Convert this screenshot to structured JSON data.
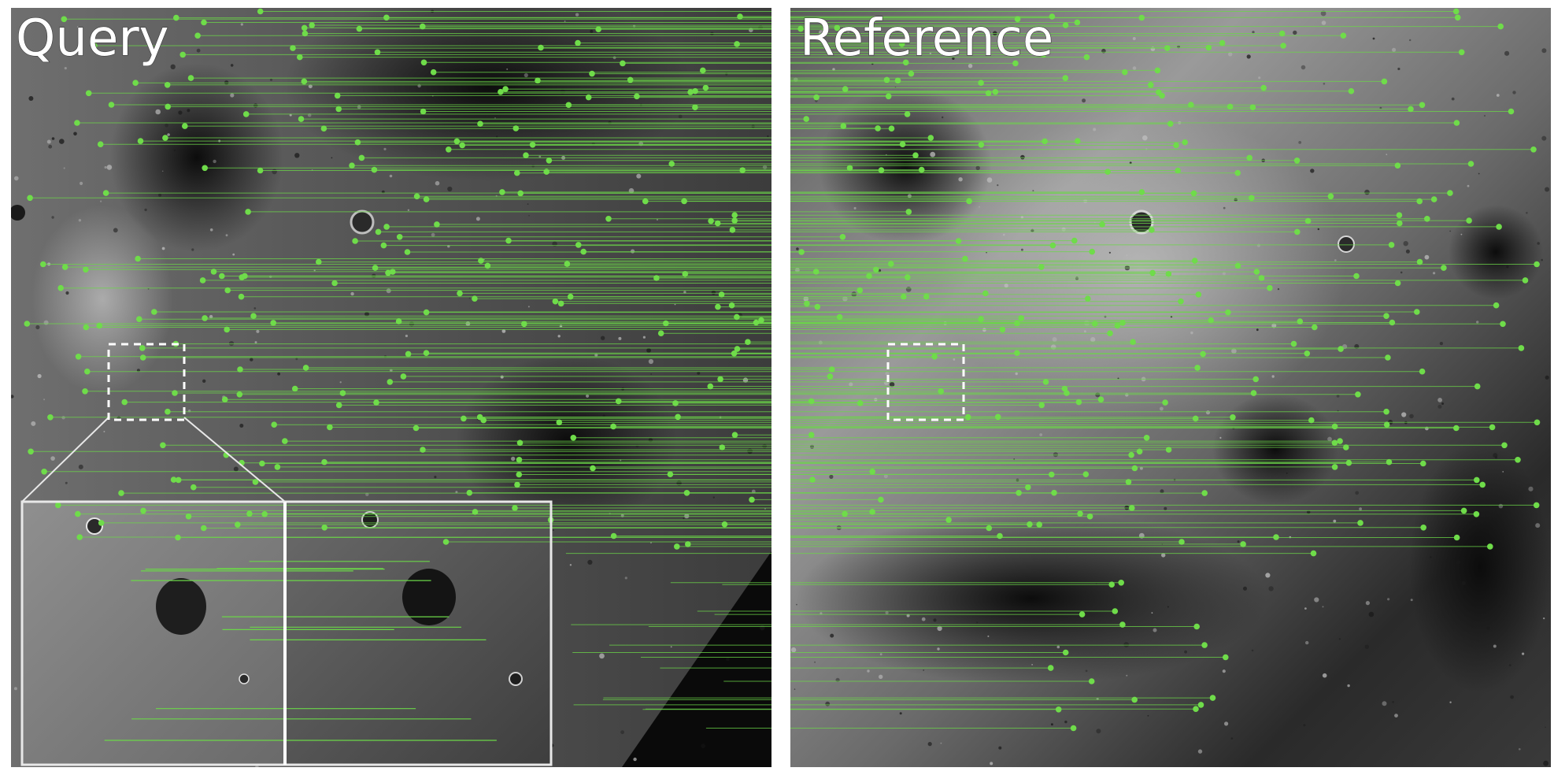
{
  "labels": {
    "query": "Query",
    "reference": "Reference"
  },
  "colors": {
    "match_line": "#6bd648",
    "keypoint": "#6fdc4a",
    "roi_box": "#ffffff",
    "divider": "#ffffff"
  }
}
